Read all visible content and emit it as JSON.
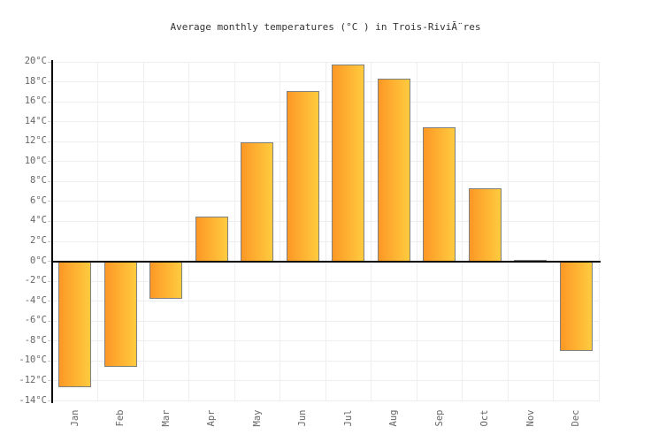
{
  "title": "Average monthly temperatures (°C ) in Trois-RiviÃ¨res",
  "colors": {
    "background": "#ffffff",
    "bar_gradient_left": "#fd9826",
    "bar_gradient_right": "#fecb3e",
    "bar_border": "#808080",
    "axis_line": "#000000",
    "gridline": "#eeeeee",
    "tick_mark": "#cccccc",
    "tick_label_text": "#666666",
    "title_text": "#333333"
  },
  "chart_data": {
    "type": "bar",
    "title": "Average monthly temperatures (°C ) in Trois-RiviÃ¨res",
    "categories": [
      "Jan",
      "Feb",
      "Mar",
      "Apr",
      "May",
      "Jun",
      "Jul",
      "Aug",
      "Sep",
      "Oct",
      "Nov",
      "Dec"
    ],
    "values": [
      -12.5,
      -10.5,
      -3.7,
      4.5,
      11.9,
      17.1,
      19.7,
      18.3,
      13.4,
      7.3,
      0.1,
      -8.9
    ],
    "unit": "°C",
    "xlabel": "",
    "ylabel": "",
    "ylim": [
      -14,
      20
    ],
    "ytick_step": 2,
    "ytick_labels": [
      "20°C",
      "18°C",
      "16°C",
      "14°C",
      "12°C",
      "10°C",
      "8°C",
      "6°C",
      "4°C",
      "2°C",
      "0°C",
      "-2°C",
      "-4°C",
      "-6°C",
      "-8°C",
      "-10°C",
      "-12°C",
      "-14°C"
    ],
    "grid": true,
    "legend": false,
    "bar_orientation": "vertical",
    "baseline": 0
  }
}
